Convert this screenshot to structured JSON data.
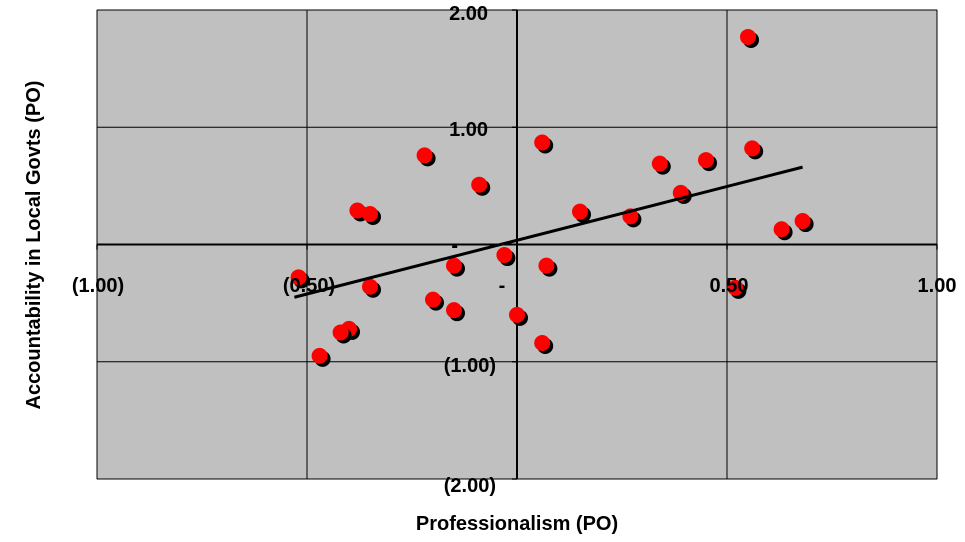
{
  "chart_data": {
    "type": "scatter",
    "title": "",
    "xlabel": "Professionalism (PO)",
    "ylabel": "Accountability in Local Govts (PO)",
    "xlim": [
      -1.0,
      1.0
    ],
    "ylim": [
      -2.0,
      2.0
    ],
    "grid": true,
    "x_tick_labels": [
      "(1.00)",
      "(0.50)",
      "-",
      "0.50",
      "1.00"
    ],
    "y_tick_labels": [
      "2.00",
      "1.00",
      "-",
      "(1.00)",
      "(2.00)"
    ],
    "x_tick_values": [
      -1.0,
      -0.5,
      0.0,
      0.5,
      1.0
    ],
    "y_tick_values": [
      2.0,
      1.0,
      0.0,
      -1.0,
      -2.0
    ],
    "colors": {
      "plot_background": "#c0c0c0",
      "marker": "#ff0000",
      "marker_shadow": "#000000",
      "trendline": "#000000",
      "grid": "#000000"
    },
    "series": [
      {
        "points": [
          [
            0.55,
            1.77
          ],
          [
            0.06,
            0.87
          ],
          [
            -0.22,
            0.76
          ],
          [
            0.56,
            0.82
          ],
          [
            0.45,
            0.72
          ],
          [
            0.34,
            0.69
          ],
          [
            -0.09,
            0.51
          ],
          [
            0.39,
            0.44
          ],
          [
            -0.38,
            0.29
          ],
          [
            -0.35,
            0.26
          ],
          [
            0.15,
            0.28
          ],
          [
            0.27,
            0.24
          ],
          [
            0.68,
            0.2
          ],
          [
            0.63,
            0.13
          ],
          [
            -0.03,
            -0.09
          ],
          [
            -0.52,
            -0.28
          ],
          [
            -0.15,
            -0.18
          ],
          [
            0.07,
            -0.18
          ],
          [
            -0.35,
            -0.36
          ],
          [
            -0.2,
            -0.47
          ],
          [
            -0.15,
            -0.56
          ],
          [
            0.0,
            -0.6
          ],
          [
            0.52,
            -0.37
          ],
          [
            -0.4,
            -0.72
          ],
          [
            -0.42,
            -0.75
          ],
          [
            0.06,
            -0.84
          ],
          [
            -0.47,
            -0.95
          ]
        ]
      }
    ],
    "trendline": {
      "x": [
        -0.53,
        0.68
      ],
      "y": [
        -0.45,
        0.66
      ]
    }
  }
}
